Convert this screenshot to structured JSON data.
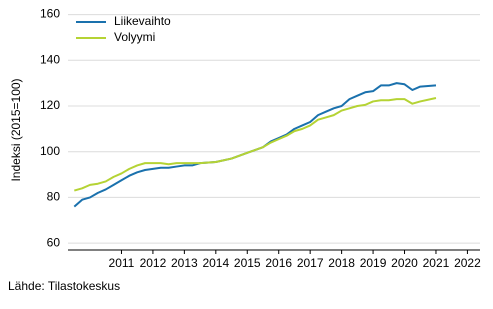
{
  "chart_data": {
    "type": "line",
    "y_label": "Indeksi (2015=100)",
    "source": "Lähde: Tilastokeskus",
    "x": [
      2010,
      2010.25,
      2010.5,
      2010.75,
      2011,
      2011.25,
      2011.5,
      2011.75,
      2012,
      2012.25,
      2012.5,
      2012.75,
      2013,
      2013.25,
      2013.5,
      2013.75,
      2014,
      2014.5,
      2015,
      2015.5,
      2016,
      2016.25,
      2016.5,
      2016.75,
      2017,
      2017.25,
      2017.5,
      2017.75,
      2018,
      2018.25,
      2018.5,
      2018.75,
      2019,
      2019.25,
      2019.5,
      2019.75,
      2020,
      2020.25,
      2020.5,
      2020.75,
      2021,
      2021.5
    ],
    "series": [
      {
        "name": "Liikevaihto",
        "color": "#1a71ad",
        "values": [
          76,
          79,
          80,
          82,
          83.5,
          85.5,
          87.5,
          89.5,
          91,
          92,
          92.5,
          93,
          93,
          93.5,
          94,
          94,
          95,
          95.5,
          97,
          99.5,
          102,
          104.5,
          106,
          107.5,
          110,
          111.5,
          113,
          116,
          117.5,
          119,
          120,
          123,
          124.5,
          126,
          126.5,
          129,
          129,
          130,
          129.5,
          127,
          128.5,
          129
        ]
      },
      {
        "name": "Volyymi",
        "color": "#b5d334",
        "values": [
          83,
          84,
          85.5,
          86,
          87,
          89,
          90.5,
          92.5,
          94,
          95,
          95,
          95,
          94.5,
          95,
          95,
          95,
          95,
          95.5,
          97,
          99.5,
          102,
          104,
          105.5,
          107,
          109,
          110,
          111.5,
          114,
          115,
          116,
          118,
          119,
          120,
          120.5,
          122,
          122.5,
          122.5,
          123,
          123,
          121,
          122,
          123.5
        ]
      }
    ],
    "xlim": [
      2009.8,
      2022.9
    ],
    "xticks": [
      {
        "value": 2011.5,
        "label": "2011"
      },
      {
        "value": 2012.5,
        "label": "2012"
      },
      {
        "value": 2013.5,
        "label": "2013"
      },
      {
        "value": 2014.5,
        "label": "2014"
      },
      {
        "value": 2015.5,
        "label": "2015"
      },
      {
        "value": 2016.5,
        "label": "2016"
      },
      {
        "value": 2017.5,
        "label": "2017"
      },
      {
        "value": 2018.5,
        "label": "2018"
      },
      {
        "value": 2019.5,
        "label": "2019"
      },
      {
        "value": 2020.5,
        "label": "2020"
      },
      {
        "value": 2021.5,
        "label": "2021"
      },
      {
        "value": 2022.5,
        "label": "2022"
      }
    ],
    "ylim": [
      57,
      162
    ],
    "yticks": [
      60,
      80,
      100,
      120,
      140,
      160
    ],
    "grid": true,
    "legend": "top-left"
  }
}
